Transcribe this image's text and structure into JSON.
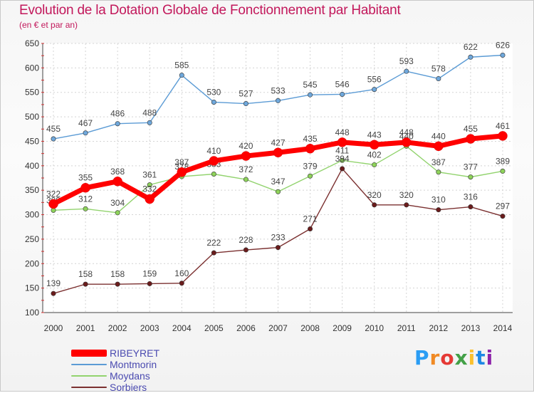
{
  "title": "Evolution de la Dotation Globale de Fonctionnement par Habitant",
  "subtitle": "(en € et par an)",
  "logo": {
    "letters": [
      "P",
      "r",
      "o",
      "x",
      "i",
      "t",
      "i"
    ],
    "colors": [
      "#2a9df4",
      "#f08a24",
      "#e53935",
      "#43a047",
      "#fbc02d",
      "#1e88e5",
      "#8e24aa"
    ]
  },
  "chart_data": {
    "type": "line",
    "title": "Evolution de la Dotation Globale de Fonctionnement par Habitant",
    "subtitle": "(en € et par an)",
    "x": [
      "2000",
      "2001",
      "2002",
      "2003",
      "2004",
      "2005",
      "2006",
      "2007",
      "2008",
      "2009",
      "2010",
      "2011",
      "2012",
      "2013",
      "2014"
    ],
    "ylim": [
      100,
      650
    ],
    "yticks": [
      100,
      150,
      200,
      250,
      300,
      350,
      400,
      450,
      500,
      550,
      600,
      650
    ],
    "grid": true,
    "legend": "bottom-left",
    "series": [
      {
        "name": "Montmorin",
        "color": "#5b9bd5",
        "marker": "#6fa8dc",
        "values": [
          455,
          467,
          486,
          488,
          585,
          530,
          527,
          533,
          545,
          546,
          556,
          593,
          578,
          622,
          626
        ]
      },
      {
        "name": "Moydans",
        "color": "#92d36e",
        "marker": "#8ed35a",
        "values": [
          309,
          312,
          304,
          361,
          378,
          383,
          372,
          347,
          379,
          411,
          402,
          440,
          387,
          377,
          389
        ]
      },
      {
        "name": "Sorbiers",
        "color": "#7b3030",
        "marker": "#6b1c1c",
        "values": [
          139,
          158,
          158,
          159,
          160,
          222,
          228,
          233,
          271,
          394,
          320,
          320,
          310,
          316,
          297
        ]
      },
      {
        "name": "RIBEYRET",
        "color": "#ff0000",
        "marker": "#ff0000",
        "values": [
          322,
          355,
          368,
          332,
          387,
          410,
          420,
          427,
          435,
          448,
          443,
          448,
          440,
          455,
          461
        ]
      }
    ]
  }
}
